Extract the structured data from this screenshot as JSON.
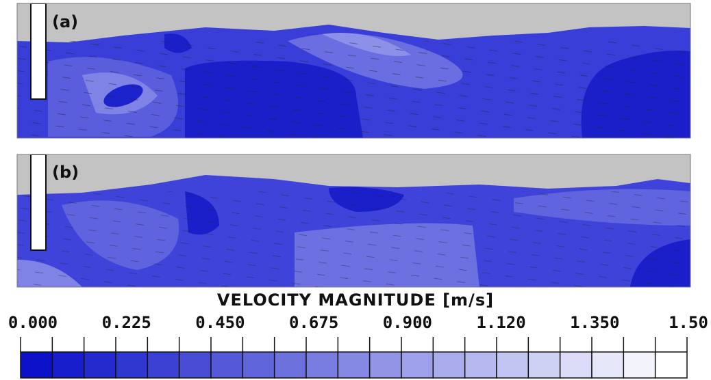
{
  "panels": [
    {
      "label": "(a)"
    },
    {
      "label": "(b)"
    }
  ],
  "colorbar": {
    "title": "VELOCITY MAGNITUDE [m/s]",
    "tick_labels": [
      "0.000",
      "0.225",
      "0.450",
      "0.675",
      "0.900",
      "1.120",
      "1.350",
      "1.50"
    ]
  }
}
